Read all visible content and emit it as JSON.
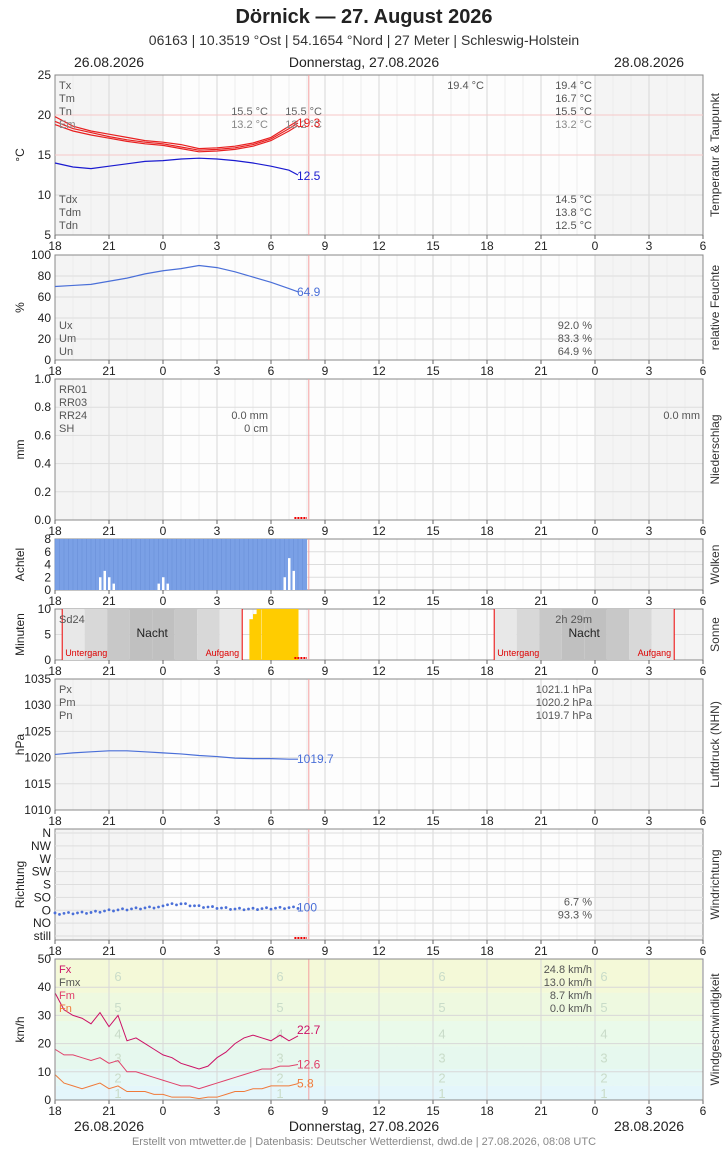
{
  "header": {
    "title": "Dörnick  —  27. August 2026",
    "subtitle": "06163  |  10.3519 °Ost  |  54.1654 °Nord  |  27 Meter  |  Schleswig-Holstein"
  },
  "datebar": {
    "left": "26.08.2026",
    "center": "Donnerstag, 27.08.2026",
    "right": "28.08.2026"
  },
  "footer": "Erstellt von mtwetter.de | Datenbasis: Deutscher Wetterdienst, dwd.de | 27.08.2026, 08:08 UTC",
  "colors": {
    "red": "#e82020",
    "blue": "#1a1ad0",
    "lightblue": "#4a6fd8",
    "sun": "#ffcc00",
    "cloud": "#7aa0e6",
    "gust": "#cc1166",
    "wind": "#e0406a",
    "windmin": "#f07a3a"
  },
  "chart_data": [
    {
      "type": "line",
      "name": "Temperatur & Taupunkt",
      "ylabel": "°C",
      "ylim": [
        5,
        25
      ],
      "x_axis": {
        "range_hours": [
          -6,
          30
        ],
        "tick_labels": [
          "18",
          "21",
          "0",
          "3",
          "6",
          "9",
          "12",
          "15",
          "18",
          "21",
          "0",
          "3",
          "6"
        ]
      },
      "y_ticks": [
        5,
        10,
        15,
        20,
        25
      ],
      "series": [
        {
          "name": "Tx",
          "color": "#e82020",
          "x": [
            -6,
            -5,
            -4,
            -3,
            -2,
            -1,
            0,
            1,
            2,
            3,
            4,
            5,
            6,
            7,
            7.5
          ],
          "y": [
            19.8,
            18.6,
            18.0,
            17.6,
            17.2,
            16.8,
            16.6,
            16.3,
            15.8,
            15.9,
            16.1,
            16.5,
            17.2,
            18.6,
            19.3
          ]
        },
        {
          "name": "Tm",
          "color": "#e82020",
          "x": [
            -6,
            -5,
            -4,
            -3,
            -2,
            -1,
            0,
            1,
            2,
            3,
            4,
            5,
            6,
            7,
            7.5
          ],
          "y": [
            19.2,
            18.3,
            17.8,
            17.3,
            16.9,
            16.6,
            16.4,
            16.0,
            15.6,
            15.7,
            15.9,
            16.3,
            17.0,
            18.3,
            19.0
          ]
        },
        {
          "name": "Tn",
          "color": "#e82020",
          "x": [
            -6,
            -5,
            -4,
            -3,
            -2,
            -1,
            0,
            1,
            2,
            3,
            4,
            5,
            6,
            7,
            7.5
          ],
          "y": [
            18.8,
            18.0,
            17.5,
            17.1,
            16.7,
            16.4,
            16.2,
            15.8,
            15.4,
            15.5,
            15.7,
            16.1,
            16.8,
            18.0,
            18.7
          ]
        },
        {
          "name": "Td",
          "color": "#1a1ad0",
          "x": [
            -6,
            -5,
            -4,
            -3,
            -2,
            -1,
            0,
            1,
            2,
            3,
            4,
            5,
            6,
            7,
            7.5
          ],
          "y": [
            14.0,
            13.5,
            13.3,
            13.6,
            13.9,
            14.2,
            14.3,
            14.5,
            14.6,
            14.5,
            14.3,
            14.0,
            13.6,
            13.1,
            12.5
          ]
        }
      ],
      "labels_left": [
        "Tx",
        "Tm",
        "Tn",
        "Tdx",
        "Tdm",
        "Tdn"
      ],
      "stats_day": {
        "Tx": "19.4 °C",
        "Tm": "16.7 °C",
        "Tn": "15.5 °C",
        "Tdx": "14.5 °C",
        "Tdm": "13.8 °C",
        "Tdn": "12.5 °C"
      },
      "stats_night": {
        "Tn": "15.5 °C",
        "Em": "13.2 °C"
      },
      "stats_morning": {
        "Tn": "15.5 °C",
        "Em": "13.2 °C"
      },
      "stats_mid": {
        "Tx": "19.4 °C"
      },
      "extra_label": "Em",
      "last_values": {
        "t": "19.3",
        "td": "12.5"
      }
    },
    {
      "type": "line",
      "name": "relative Feuchte",
      "ylabel": "%",
      "ylim": [
        0,
        100
      ],
      "y_ticks": [
        0,
        20,
        40,
        60,
        80,
        100
      ],
      "series": [
        {
          "name": "U",
          "color": "#4a6fd8",
          "x": [
            -6,
            -5,
            -4,
            -3,
            -2,
            -1,
            0,
            1,
            2,
            3,
            4,
            5,
            6,
            7,
            7.5
          ],
          "y": [
            70,
            71,
            72,
            75,
            78,
            82,
            85,
            87,
            90,
            88,
            84,
            79,
            74,
            68,
            64.9
          ]
        }
      ],
      "labels_left": [
        "Ux",
        "Um",
        "Un"
      ],
      "stats": {
        "Ux": "92.0 %",
        "Um": "83.3 %",
        "Un": "64.9 %"
      },
      "last_value": "64.9"
    },
    {
      "type": "bar",
      "name": "Niederschlag",
      "ylabel": "mm",
      "ylim": [
        0,
        1.0
      ],
      "y_ticks": [
        "0.0",
        "0.2",
        "0.4",
        "0.6",
        "0.8",
        "1.0"
      ],
      "labels_left": [
        "RR01",
        "RR03",
        "RR24",
        "SH"
      ],
      "stats_mid": {
        "RR24": "0.0 mm",
        "SH": "0 cm"
      },
      "stats_right": "0.0 mm"
    },
    {
      "type": "bar",
      "name": "Wolken",
      "ylabel": "Achtel",
      "ylim": [
        0,
        8
      ],
      "y_ticks": [
        0,
        2,
        4,
        6,
        8
      ],
      "cloud_until_hour": 8,
      "low_clouds": [
        {
          "x": -3.5,
          "v": 2
        },
        {
          "x": -3.25,
          "v": 3
        },
        {
          "x": -3.0,
          "v": 2
        },
        {
          "x": -2.75,
          "v": 1
        },
        {
          "x": -0.25,
          "v": 1
        },
        {
          "x": 0.0,
          "v": 2
        },
        {
          "x": 0.25,
          "v": 1
        },
        {
          "x": 6.75,
          "v": 2
        },
        {
          "x": 7.0,
          "v": 5
        },
        {
          "x": 7.25,
          "v": 3
        }
      ]
    },
    {
      "type": "bar",
      "name": "Sonne",
      "ylabel": "Minuten",
      "ylim": [
        0,
        10
      ],
      "y_ticks": [
        0,
        5,
        10
      ],
      "labels_left": [
        "Sd24"
      ],
      "night_label": "Nacht",
      "sunset_label": "Untergang",
      "sunrise_label": "Aufgang",
      "sun_right_value": "2h 29m",
      "sunset_hours": [
        -5.6,
        18.4
      ],
      "sunrise_hours": [
        4.4,
        28.4
      ],
      "sun_minutes": [
        {
          "x": 4.8,
          "v": 8
        },
        {
          "x": 5.0,
          "v": 9
        },
        {
          "x": 5.2,
          "v": 10
        },
        {
          "x": 5.5,
          "v": 10
        },
        {
          "x": 5.75,
          "v": 10
        },
        {
          "x": 6.0,
          "v": 10
        },
        {
          "x": 6.25,
          "v": 10
        },
        {
          "x": 6.5,
          "v": 10
        },
        {
          "x": 6.75,
          "v": 10
        },
        {
          "x": 7.0,
          "v": 10
        },
        {
          "x": 7.25,
          "v": 10
        }
      ]
    },
    {
      "type": "line",
      "name": "Luftdruck (NHN)",
      "ylabel": "hPa",
      "ylim": [
        1010,
        1035
      ],
      "y_ticks": [
        1010,
        1015,
        1020,
        1025,
        1030,
        1035
      ],
      "series": [
        {
          "name": "P",
          "color": "#4a6fd8",
          "x": [
            -6,
            -5,
            -4,
            -3,
            -2,
            -1,
            0,
            1,
            2,
            3,
            4,
            5,
            6,
            7,
            7.5
          ],
          "y": [
            1020.6,
            1020.9,
            1021.1,
            1021.3,
            1021.3,
            1021.1,
            1020.9,
            1020.7,
            1020.4,
            1020.2,
            1019.9,
            1019.8,
            1019.8,
            1019.7,
            1019.7
          ]
        }
      ],
      "labels_left": [
        "Px",
        "Pm",
        "Pn"
      ],
      "stats": {
        "Px": "1021.1 hPa",
        "Pm": "1020.2 hPa",
        "Pn": "1019.7 hPa"
      },
      "last_value": "1019.7"
    },
    {
      "type": "scatter",
      "name": "Windrichtung",
      "ylabel": "Richtung",
      "y_labels": [
        "still",
        "NO",
        "O",
        "SO",
        "S",
        "SW",
        "W",
        "NW",
        "N"
      ],
      "series": [
        {
          "name": "dir",
          "color": "#4a6fd8",
          "x": [
            -6,
            -5,
            -4,
            -3,
            -2,
            -1,
            0,
            1,
            2,
            3,
            4,
            5,
            6,
            7,
            7.5
          ],
          "y": [
            1.85,
            1.9,
            1.95,
            2.1,
            2.2,
            2.3,
            2.4,
            2.5,
            2.3,
            2.2,
            2.1,
            2.1,
            2.15,
            2.2,
            2.2
          ]
        }
      ],
      "stats": [
        "6.7 %",
        "93.3 %"
      ],
      "last_value": "100"
    },
    {
      "type": "line",
      "name": "Windgeschwindigkeit",
      "ylabel": "km/h",
      "ylim": [
        0,
        50
      ],
      "y_ticks": [
        0,
        10,
        20,
        30,
        40,
        50
      ],
      "bft_labels": [
        "1",
        "2",
        "3",
        "4",
        "5",
        "6"
      ],
      "series": [
        {
          "name": "Fx",
          "color": "#cc1166",
          "x": [
            -6,
            -5.5,
            -5,
            -4.5,
            -4,
            -3.5,
            -3,
            -2.5,
            -2,
            -1.5,
            -1,
            -0.5,
            0,
            0.5,
            1,
            1.5,
            2,
            2.5,
            3,
            3.5,
            4,
            4.5,
            5,
            5.5,
            6,
            6.5,
            7,
            7.5
          ],
          "y": [
            38,
            32,
            30,
            29,
            27,
            31,
            26,
            30,
            21,
            22,
            20,
            18,
            16,
            15,
            13,
            12,
            11,
            12,
            15,
            17,
            20,
            22,
            23,
            22,
            21,
            23,
            21,
            22.7
          ]
        },
        {
          "name": "Fm",
          "color": "#e0406a",
          "x": [
            -6,
            -5.5,
            -5,
            -4.5,
            -4,
            -3.5,
            -3,
            -2.5,
            -2,
            -1.5,
            -1,
            -0.5,
            0,
            0.5,
            1,
            1.5,
            2,
            2.5,
            3,
            3.5,
            4,
            4.5,
            5,
            5.5,
            6,
            6.5,
            7,
            7.5
          ],
          "y": [
            18,
            16,
            16,
            15,
            14,
            15,
            13,
            14,
            10,
            10,
            9,
            8,
            7,
            6,
            5,
            5,
            4,
            5,
            6,
            7,
            8,
            9,
            10,
            11,
            11,
            12,
            12,
            12.6
          ]
        },
        {
          "name": "Fn",
          "color": "#f07a3a",
          "x": [
            -6,
            -5.5,
            -5,
            -4.5,
            -4,
            -3.5,
            -3,
            -2.5,
            -2,
            -1.5,
            -1,
            -0.5,
            0,
            0.5,
            1,
            1.5,
            2,
            2.5,
            3,
            3.5,
            4,
            4.5,
            5,
            5.5,
            6,
            6.5,
            7,
            7.5
          ],
          "y": [
            9,
            6,
            5,
            4,
            5,
            6,
            4,
            5,
            3,
            3,
            3,
            2,
            2,
            1,
            1,
            1,
            0.5,
            1,
            1,
            2,
            3,
            3,
            4,
            4,
            5,
            5,
            5,
            5.8
          ]
        }
      ],
      "labels_left": [
        "Fx",
        "Fmx",
        "Fm",
        "Fn"
      ],
      "stats": {
        "Fx": "24.8 km/h",
        "Fmx": "13.0 km/h",
        "Fm": "8.7 km/h",
        "Fn": "0.0 km/h"
      },
      "last_values": {
        "Fx": "22.7",
        "Fm": "12.6",
        "Fn": "5.8"
      }
    }
  ]
}
